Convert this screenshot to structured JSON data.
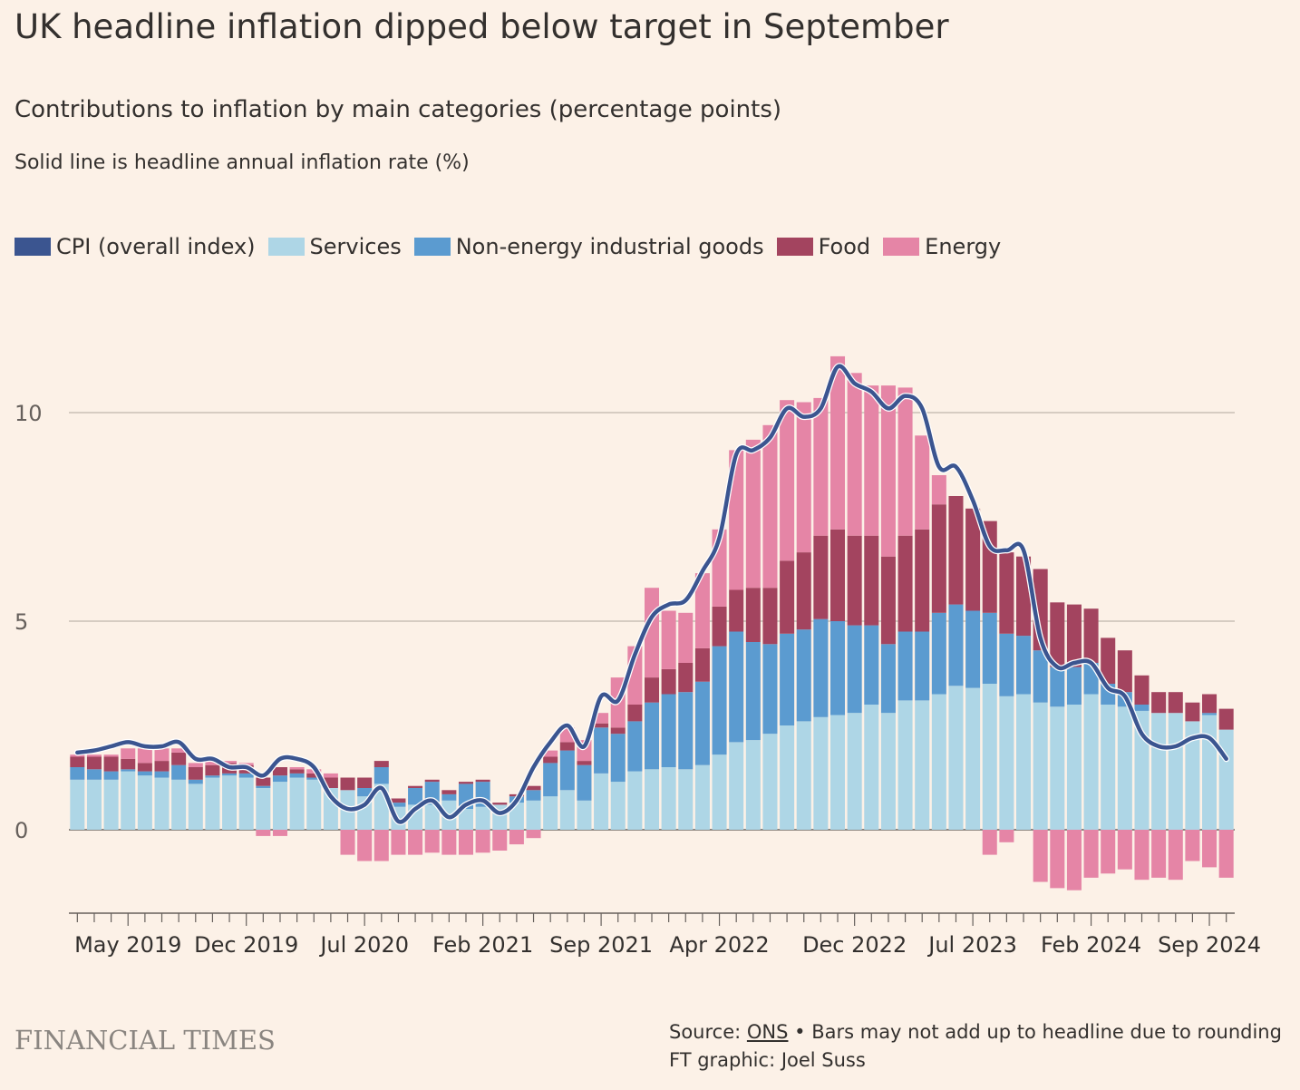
{
  "title": "UK headline inflation dipped below target in September",
  "subtitle": "Contributions to inflation by main categories (percentage points)",
  "note": "Solid line is headline annual inflation rate (%)",
  "legend": [
    {
      "label": "CPI (overall index)",
      "color": "#3b5590"
    },
    {
      "label": "Services",
      "color": "#aed6e6"
    },
    {
      "label": "Non-energy industrial goods",
      "color": "#5b9bd0"
    },
    {
      "label": "Food",
      "color": "#a3445f"
    },
    {
      "label": "Energy",
      "color": "#e585a6"
    }
  ],
  "source": {
    "prefix": "Source: ",
    "link": "ONS",
    "suffix": " • Bars may not add up to headline due to rounding"
  },
  "credit": "FT graphic: Joel Suss",
  "logo": "FINANCIAL TIMES",
  "chart_data": {
    "type": "bar",
    "stacked": true,
    "ylim": [
      -2,
      11.5
    ],
    "yticks": [
      0,
      5,
      10
    ],
    "grid": true,
    "xtick_labels": [
      "May 2019",
      "Dec 2019",
      "Jul 2020",
      "Feb 2021",
      "Sep 2021",
      "Apr 2022",
      "Dec 2022",
      "Jul 2023",
      "Feb 2024",
      "Sep 2024"
    ],
    "xtick_indices": [
      3,
      10,
      17,
      24,
      31,
      38,
      46,
      53,
      60,
      67
    ],
    "series": [
      {
        "name": "Services",
        "color": "#aed6e6",
        "values": [
          1.2,
          1.2,
          1.2,
          1.4,
          1.3,
          1.25,
          1.2,
          1.1,
          1.25,
          1.3,
          1.25,
          1.0,
          1.15,
          1.25,
          1.2,
          1.0,
          0.95,
          0.8,
          1.1,
          0.55,
          0.6,
          0.6,
          0.7,
          0.5,
          0.55,
          0.6,
          0.65,
          0.7,
          0.8,
          0.95,
          0.7,
          1.35,
          1.15,
          1.4,
          1.45,
          1.5,
          1.45,
          1.55,
          1.8,
          2.1,
          2.15,
          2.3,
          2.5,
          2.6,
          2.7,
          2.75,
          2.8,
          3.0,
          2.8,
          3.1,
          3.1,
          3.25,
          3.45,
          3.4,
          3.5,
          3.2,
          3.25,
          3.05,
          2.95,
          3.0,
          3.25,
          3.0,
          2.95,
          2.85,
          2.8,
          2.8,
          2.6,
          2.75,
          2.4
        ]
      },
      {
        "name": "Non-energy industrial goods",
        "color": "#5b9bd0",
        "values": [
          0.3,
          0.25,
          0.2,
          0.05,
          0.1,
          0.15,
          0.35,
          0.1,
          0.05,
          0.05,
          0.1,
          0.05,
          0.15,
          0.1,
          0.05,
          0.0,
          0.0,
          0.2,
          0.4,
          0.1,
          0.4,
          0.55,
          0.15,
          0.6,
          0.6,
          0.0,
          0.15,
          0.25,
          0.8,
          0.95,
          0.85,
          1.1,
          1.15,
          1.2,
          1.6,
          1.75,
          1.85,
          2.0,
          2.6,
          2.65,
          2.35,
          2.15,
          2.2,
          2.2,
          2.35,
          2.25,
          2.1,
          1.9,
          1.65,
          1.65,
          1.65,
          1.95,
          1.95,
          1.85,
          1.7,
          1.5,
          1.4,
          1.25,
          0.95,
          0.9,
          0.75,
          0.5,
          0.35,
          0.15,
          0.0,
          0.0,
          0.0,
          0.05,
          0.0
        ]
      },
      {
        "name": "Food",
        "color": "#a3445f",
        "values": [
          0.25,
          0.3,
          0.35,
          0.25,
          0.2,
          0.25,
          0.3,
          0.3,
          0.25,
          0.25,
          0.2,
          0.2,
          0.2,
          0.1,
          0.1,
          0.25,
          0.3,
          0.25,
          0.15,
          0.1,
          0.05,
          0.05,
          0.1,
          0.05,
          0.05,
          0.05,
          0.05,
          0.1,
          0.15,
          0.2,
          0.1,
          0.1,
          0.15,
          0.4,
          0.6,
          0.6,
          0.7,
          0.8,
          0.95,
          1.0,
          1.3,
          1.35,
          1.75,
          1.85,
          2.0,
          2.2,
          2.15,
          2.15,
          2.1,
          2.3,
          2.45,
          2.6,
          2.6,
          2.45,
          2.2,
          1.95,
          1.9,
          1.95,
          1.55,
          1.5,
          1.3,
          1.1,
          1.0,
          0.7,
          0.5,
          0.5,
          0.45,
          0.45,
          0.5
        ]
      },
      {
        "name": "Energy",
        "color": "#e585a6",
        "values": [
          0.05,
          0.05,
          0.05,
          0.25,
          0.35,
          0.3,
          0.1,
          0.1,
          0.1,
          0.05,
          0.05,
          -0.15,
          -0.15,
          0.05,
          0.1,
          0.1,
          -0.6,
          -0.75,
          -0.75,
          -0.6,
          -0.6,
          -0.55,
          -0.6,
          -0.6,
          -0.55,
          -0.5,
          -0.35,
          -0.2,
          0.15,
          0.35,
          0.5,
          0.25,
          1.2,
          1.4,
          2.15,
          1.4,
          1.2,
          1.8,
          1.85,
          3.35,
          3.55,
          3.9,
          3.85,
          3.6,
          3.3,
          4.15,
          3.9,
          3.6,
          4.1,
          3.55,
          2.25,
          0.7,
          0.0,
          0.0,
          -0.6,
          -0.3,
          0.0,
          -1.25,
          -1.4,
          -1.45,
          -1.15,
          -1.05,
          -0.95,
          -1.2,
          -1.15,
          -1.2,
          -0.75,
          -0.9,
          -1.15
        ]
      },
      {
        "name": "CPI (overall index)",
        "color": "#3b5590",
        "type": "line",
        "values": [
          1.85,
          1.9,
          2.0,
          2.1,
          2.0,
          2.0,
          2.1,
          1.7,
          1.7,
          1.5,
          1.5,
          1.3,
          1.7,
          1.7,
          1.5,
          0.8,
          0.5,
          0.6,
          1.0,
          0.2,
          0.5,
          0.7,
          0.3,
          0.6,
          0.7,
          0.4,
          0.7,
          1.5,
          2.1,
          2.5,
          2.0,
          3.2,
          3.1,
          4.2,
          5.1,
          5.4,
          5.5,
          6.2,
          7.0,
          9.0,
          9.1,
          9.4,
          10.1,
          9.9,
          10.1,
          11.1,
          10.7,
          10.5,
          10.1,
          10.4,
          10.1,
          8.7,
          8.7,
          7.9,
          6.8,
          6.7,
          6.7,
          4.6,
          3.9,
          4.0,
          4.0,
          3.4,
          3.2,
          2.3,
          2.0,
          2.0,
          2.2,
          2.2,
          1.7
        ]
      }
    ]
  }
}
